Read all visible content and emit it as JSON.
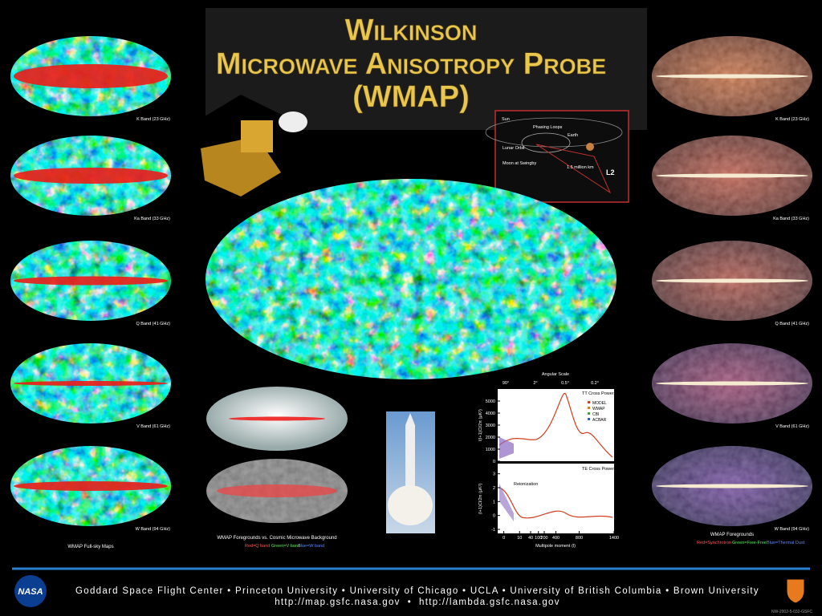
{
  "title": {
    "line1": "Wilkinson",
    "line2": "Microwave Anisotropy Probe",
    "line3": "(WMAP)"
  },
  "left_maps": {
    "bands": [
      "K Band (23 GHz)",
      "Ka Band (33 GHz)",
      "Q Band (41 GHz)",
      "V Band (61 GHz)",
      "W Band (94 GHz)"
    ],
    "caption": "WMAP Full-sky Maps"
  },
  "right_maps": {
    "bands": [
      "K Band (23 GHz)",
      "Ka Band (33 GHz)",
      "Q Band (41 GHz)",
      "V Band (61 GHz)",
      "W Band (94 GHz)"
    ],
    "caption": "WMAP Foregrounds",
    "legend": [
      "Red=Synchrotron",
      "Green=Free-Free",
      "Blue=Thermal Dust"
    ]
  },
  "center_maps": {
    "caption": "WMAP Foregrounds vs. Cosmic Microwave Background",
    "legend": [
      "Red=Q band",
      "Green=V band",
      "Blue=W band"
    ]
  },
  "orbit": {
    "labels": [
      "Sun",
      "Phasing Loops",
      "Earth",
      "Lunar Orbit",
      "Moon at Swingby",
      "L2",
      "1.5 million km"
    ]
  },
  "spectrum": {
    "top_label": "Angular Scale",
    "angular_ticks": [
      "90°",
      "2°",
      "0.5°",
      "0.2°"
    ],
    "tt_title": "TT Cross Power Spectrum",
    "legend": [
      "MODEL",
      "WMAP",
      "CBI",
      "ACBAR"
    ],
    "tt_ylabel": "l(l+1)Cl/2π (μK²)",
    "tt_yticks": [
      0,
      1000,
      2000,
      3000,
      4000,
      5000
    ],
    "te_title": "TE Cross Power Spectrum",
    "te_ylabel": "(l+1)Cl/2π (μK²)",
    "te_yticks": [
      -1,
      0,
      1,
      2,
      3
    ],
    "reionization": "Reionization",
    "xlabel": "Multipole moment (l)",
    "xticks": [
      0,
      10,
      40,
      100,
      200,
      400,
      800,
      1400
    ]
  },
  "footer": {
    "logo": "NASA",
    "institutions": "Goddard Space Flight Center • Princeton University • University of Chicago • UCLA • University of British Columbia • Brown University",
    "urls": "http://map.gsfc.nasa.gov  •  http://lambda.gsfc.nasa.gov",
    "code": "NW-2002-5-032-GSFC"
  }
}
